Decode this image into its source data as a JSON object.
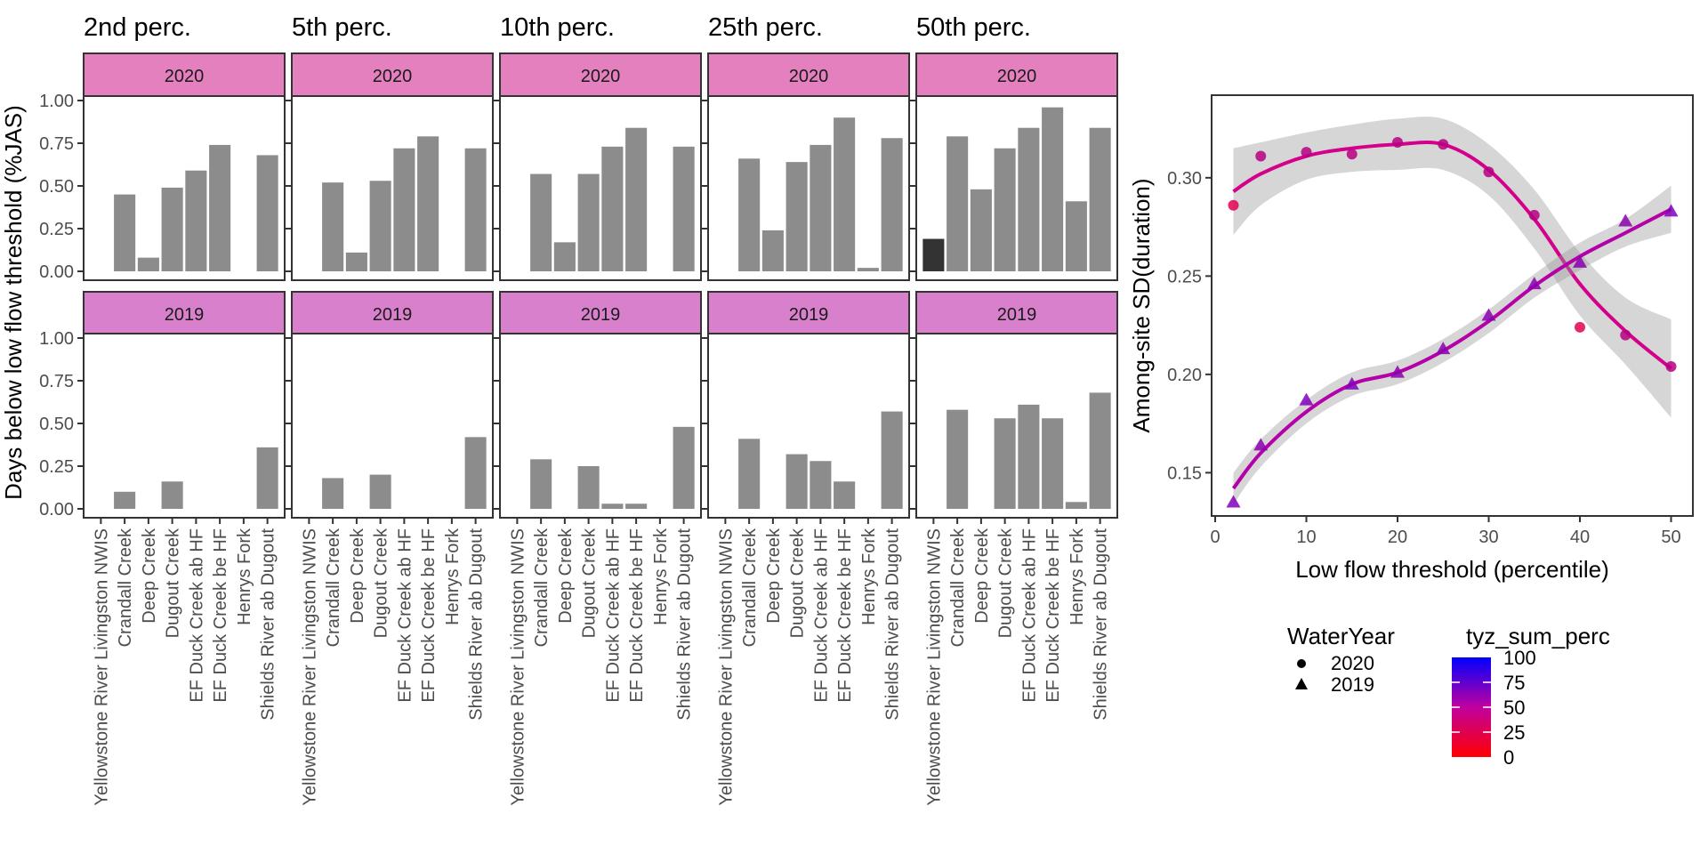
{
  "chart_data": [
    {
      "type": "bar",
      "layout": "faceted grid (2 rows x 5 columns)",
      "ylabel": "Days below low flow threshold (%JAS)",
      "ylim": [
        0,
        1
      ],
      "yticks": [
        "0.00",
        "0.25",
        "0.50",
        "0.75",
        "1.00"
      ],
      "categories": [
        "Yellowstone River Livingston NWIS",
        "Crandall Creek",
        "Deep Creek",
        "Dugout Creek",
        "EF Duck Creek ab HF",
        "EF Duck Creek be HF",
        "Henrys Fork",
        "Shields River ab Dugout"
      ],
      "column_titles": [
        "2nd perc.",
        "5th perc.",
        "10th perc.",
        "25th perc.",
        "50th perc."
      ],
      "row_strips": [
        "2020",
        "2019"
      ],
      "strip_colors": {
        "2020": "#e580bf",
        "2019": "#d980cc"
      },
      "bar_color": "#8c8c8c",
      "highlight_bar_color": "#333333",
      "facets": {
        "2020": [
          {
            "column": "2nd perc.",
            "values": [
              0,
              0.45,
              0.08,
              0.49,
              0.59,
              0.74,
              0,
              0.68
            ]
          },
          {
            "column": "5th perc.",
            "values": [
              0,
              0.52,
              0.11,
              0.53,
              0.72,
              0.79,
              0,
              0.72
            ]
          },
          {
            "column": "10th perc.",
            "values": [
              0,
              0.57,
              0.17,
              0.57,
              0.73,
              0.84,
              0,
              0.73
            ]
          },
          {
            "column": "25th perc.",
            "values": [
              0,
              0.66,
              0.24,
              0.64,
              0.74,
              0.9,
              0.02,
              0.78
            ]
          },
          {
            "column": "50th perc.",
            "values": [
              0.19,
              0.79,
              0.48,
              0.72,
              0.84,
              0.96,
              0.41,
              0.84
            ],
            "highlight_index": 0
          }
        ],
        "2019": [
          {
            "column": "2nd perc.",
            "values": [
              0,
              0.1,
              0,
              0.16,
              0,
              0,
              0,
              0.36
            ]
          },
          {
            "column": "5th perc.",
            "values": [
              0,
              0.18,
              0,
              0.2,
              0,
              0,
              0,
              0.42
            ]
          },
          {
            "column": "10th perc.",
            "values": [
              0,
              0.29,
              0,
              0.25,
              0.03,
              0.03,
              0,
              0.48
            ]
          },
          {
            "column": "25th perc.",
            "values": [
              0,
              0.41,
              0,
              0.32,
              0.28,
              0.16,
              0,
              0.57
            ]
          },
          {
            "column": "50th perc.",
            "values": [
              0,
              0.58,
              0,
              0.53,
              0.61,
              0.53,
              0.04,
              0.68
            ]
          }
        ]
      }
    },
    {
      "type": "scatter",
      "xlabel": "Low flow threshold (percentile)",
      "ylabel": "Among-site SD(duration)",
      "xlim": [
        0,
        52
      ],
      "ylim": [
        0.128,
        0.342
      ],
      "xticks": [
        "0",
        "10",
        "20",
        "30",
        "40",
        "50"
      ],
      "yticks": [
        "0.15",
        "0.20",
        "0.25",
        "0.30"
      ],
      "grid": false,
      "smooth": "loess with grey confidence band",
      "series": [
        {
          "name": "2020",
          "shape": "circle",
          "x": [
            2,
            5,
            10,
            15,
            20,
            25,
            30,
            35,
            40,
            45,
            50
          ],
          "y": [
            0.286,
            0.311,
            0.313,
            0.312,
            0.318,
            0.317,
            0.303,
            0.281,
            0.224,
            0.22,
            0.204
          ],
          "tyz_sum_perc": [
            10,
            30,
            30,
            30,
            30,
            30,
            30,
            30,
            10,
            30,
            30
          ],
          "fit": [
            0.293,
            0.302,
            0.311,
            0.315,
            0.317,
            0.317,
            0.304,
            0.279,
            0.246,
            0.222,
            0.203
          ],
          "band": [
            0.022,
            0.016,
            0.012,
            0.012,
            0.013,
            0.013,
            0.013,
            0.015,
            0.016,
            0.017,
            0.025
          ],
          "line_color": "#d4008c"
        },
        {
          "name": "2019",
          "shape": "triangle",
          "x": [
            2,
            5,
            10,
            15,
            20,
            25,
            30,
            35,
            40,
            45,
            50
          ],
          "y": [
            0.135,
            0.164,
            0.187,
            0.195,
            0.201,
            0.213,
            0.23,
            0.246,
            0.257,
            0.278,
            0.283
          ],
          "tyz_sum_perc": [
            55,
            50,
            55,
            55,
            50,
            50,
            50,
            50,
            50,
            50,
            55
          ],
          "fit": [
            0.142,
            0.16,
            0.181,
            0.195,
            0.201,
            0.212,
            0.227,
            0.245,
            0.26,
            0.272,
            0.284
          ],
          "band": [
            0.008,
            0.007,
            0.006,
            0.006,
            0.006,
            0.006,
            0.006,
            0.006,
            0.007,
            0.007,
            0.012
          ],
          "line_color": "#b400a8"
        }
      ],
      "legends": {
        "shape": {
          "title": "WaterYear",
          "items": [
            {
              "label": "2020",
              "shape": "circle"
            },
            {
              "label": "2019",
              "shape": "triangle"
            }
          ]
        },
        "color": {
          "title": "tyz_sum_perc",
          "range": [
            0,
            100
          ],
          "ticks": [
            "0",
            "25",
            "50",
            "75",
            "100"
          ],
          "low_color": "#ff0000",
          "high_color": "#0000ff"
        }
      },
      "legend_position": "bottom"
    }
  ]
}
